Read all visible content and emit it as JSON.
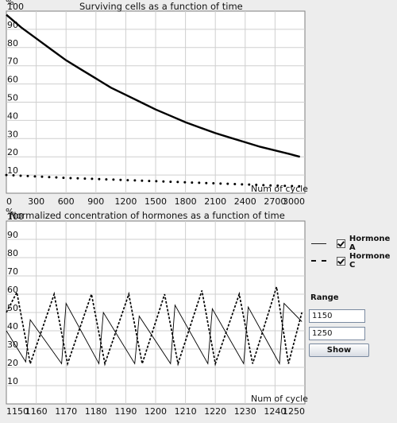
{
  "chart_data": [
    {
      "type": "line",
      "title": "Surviving cells as a function of time",
      "ylabel": "%",
      "xlabel": "Num of cycle",
      "xlim": [
        0,
        3000
      ],
      "ylim": [
        0,
        100
      ],
      "xticks": [
        0,
        300,
        600,
        900,
        1200,
        1500,
        1800,
        2100,
        2400,
        2700,
        3000
      ],
      "yticks": [
        10,
        20,
        30,
        40,
        50,
        60,
        70,
        80,
        90,
        100
      ],
      "grid": true,
      "series": [
        {
          "style": "solid",
          "x": [
            0,
            150,
            300,
            450,
            600,
            750,
            900,
            1050,
            1200,
            1350,
            1500,
            1650,
            1800,
            1950,
            2100,
            2250,
            2400,
            2550,
            2700,
            2850,
            2950
          ],
          "y": [
            98,
            91,
            85,
            79,
            73,
            68,
            63,
            58,
            54,
            50,
            46,
            42.5,
            39,
            36,
            33,
            30.5,
            28,
            25.5,
            23.5,
            21.5,
            20
          ]
        },
        {
          "style": "dotted",
          "x": [
            0,
            300,
            600,
            900,
            1200,
            1500,
            1800,
            2100,
            2400,
            2700,
            2950
          ],
          "y": [
            10,
            9.2,
            8.4,
            7.8,
            7.2,
            6.6,
            6.0,
            5.4,
            4.8,
            4.2,
            3.8
          ]
        }
      ]
    },
    {
      "type": "line",
      "title": "Normalized concentration of hormones as a function of time",
      "ylabel": "%",
      "xlabel": "Num of cycle",
      "xlim": [
        1150,
        1250
      ],
      "ylim": [
        0,
        100
      ],
      "xticks": [
        1150,
        1160,
        1170,
        1180,
        1190,
        1200,
        1210,
        1220,
        1230,
        1240,
        1250
      ],
      "yticks": [
        10,
        20,
        30,
        40,
        50,
        60,
        70,
        80,
        90,
        100
      ],
      "grid": true,
      "legend": "right",
      "series": [
        {
          "name": "Hormone A",
          "style": "solid",
          "x": [
            1150,
            1156.5,
            1158,
            1168.5,
            1170,
            1181,
            1182.5,
            1193,
            1194.5,
            1205,
            1206.5,
            1217.5,
            1219,
            1229.5,
            1231,
            1241.5,
            1243,
            1249
          ],
          "y": [
            40,
            23,
            46,
            22,
            55,
            22,
            50,
            22,
            48,
            22,
            54,
            22,
            52,
            22,
            53,
            22,
            55,
            45
          ]
        },
        {
          "name": "Hormone C",
          "style": "dashed",
          "x": [
            1150,
            1153.5,
            1158,
            1166,
            1170.5,
            1178.5,
            1183,
            1191,
            1195.5,
            1203,
            1207.5,
            1215.5,
            1220,
            1228,
            1232.5,
            1240.5,
            1244.5,
            1249
          ],
          "y": [
            50,
            61,
            22,
            60,
            22,
            60,
            22,
            60,
            22,
            60,
            22,
            62,
            22,
            60,
            22,
            64,
            22,
            50
          ]
        }
      ]
    }
  ],
  "controls": {
    "range_label": "Range",
    "range_from": "1150",
    "range_to": "1250",
    "show_label": "Show",
    "hormone_a_checked": true,
    "hormone_c_checked": true
  }
}
